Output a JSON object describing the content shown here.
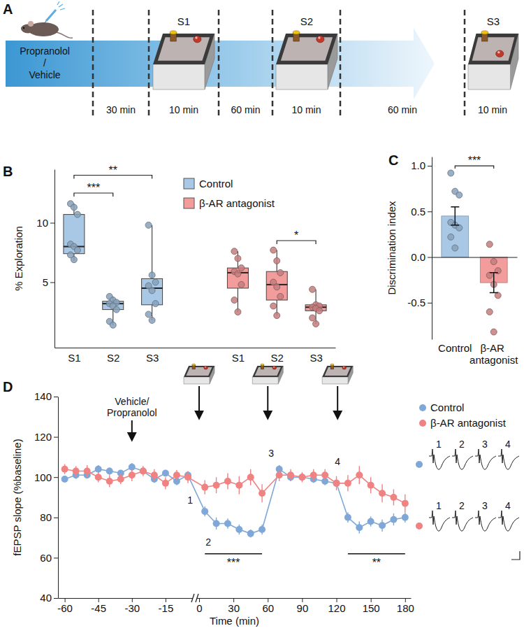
{
  "diagram": {
    "panel": "A",
    "treatment_lines": [
      "Propranolol",
      "/",
      "Vehicle"
    ],
    "sessions": [
      "S1",
      "S2",
      "S3"
    ],
    "intervals": [
      "30 min",
      "10 min",
      "60 min",
      "10 min",
      "60 min",
      "10 min"
    ]
  },
  "chart_data": [
    {
      "panel": "B",
      "type": "box",
      "ylabel": "% Exploration",
      "categories": [
        "S1",
        "S2",
        "S3"
      ],
      "ylim": [
        -0.5,
        14.5
      ],
      "yticks": [
        5,
        10
      ],
      "legend": "top",
      "series": [
        {
          "name": "Control",
          "color": "#a9c8e6",
          "boxes": [
            {
              "min": 6.8,
              "q1": 7.4,
              "median": 8.0,
              "q3": 10.7,
              "max": 11.6,
              "points": [
                11.6,
                11.3,
                10.7,
                8.2,
                8.0,
                7.7,
                7.3,
                6.9
              ]
            },
            {
              "min": 1.4,
              "q1": 2.7,
              "median": 3.2,
              "q3": 3.4,
              "max": 3.8,
              "points": [
                3.8,
                3.5,
                3.3,
                3.2,
                3.0,
                2.7,
                1.7,
                1.4
              ]
            },
            {
              "min": 1.8,
              "q1": 3.1,
              "median": 4.5,
              "q3": 5.3,
              "max": 9.8,
              "points": [
                9.8,
                5.6,
                5.0,
                4.7,
                4.3,
                3.2,
                2.3,
                1.8
              ]
            }
          ]
        },
        {
          "name": "β-AR antagonist",
          "color": "#f29c9c",
          "boxes": [
            {
              "min": 2.5,
              "q1": 4.5,
              "median": 5.8,
              "q3": 6.2,
              "max": 7.6,
              "points": [
                7.6,
                7.0,
                6.2,
                5.9,
                5.7,
                4.8,
                3.5,
                2.5
              ]
            },
            {
              "min": 2.2,
              "q1": 3.5,
              "median": 4.8,
              "q3": 5.9,
              "max": 7.7,
              "points": [
                7.7,
                6.8,
                5.8,
                5.0,
                4.6,
                3.8,
                3.0,
                2.2
              ]
            },
            {
              "min": 1.5,
              "q1": 2.6,
              "median": 2.9,
              "q3": 3.1,
              "max": 4.4,
              "points": [
                4.4,
                3.1,
                3.0,
                2.9,
                2.8,
                2.6,
                2.0,
                1.5
              ]
            }
          ]
        }
      ],
      "annotations": [
        {
          "text": "***",
          "series": "Control",
          "between": [
            "S1",
            "S2"
          ],
          "y": 12.5
        },
        {
          "text": "**",
          "series": "Control",
          "between": [
            "S1",
            "S3"
          ],
          "y": 14.0
        },
        {
          "text": "*",
          "series": "β-AR antagonist",
          "between": [
            "S2",
            "S3"
          ],
          "y": 8.5
        }
      ]
    },
    {
      "panel": "C",
      "type": "bar",
      "ylabel": "Discrimination index",
      "categories": [
        "Control",
        "β-AR antagonist"
      ],
      "values": [
        0.45,
        -0.28
      ],
      "errors": [
        0.1,
        0.11
      ],
      "colors": [
        "#a9c8e6",
        "#f29c9c"
      ],
      "points": [
        [
          0.92,
          0.72,
          0.68,
          0.38,
          0.35,
          0.32,
          0.22,
          0.1
        ],
        [
          0.14,
          -0.05,
          -0.15,
          -0.2,
          -0.3,
          -0.42,
          -0.6,
          -0.82
        ]
      ],
      "ylim": [
        -0.9,
        1.1
      ],
      "yticks": [
        -0.5,
        {
          "value": 0,
          "label": "0.0"
        },
        0.5,
        {
          "value": 1,
          "label": "1.0"
        }
      ],
      "annotations": [
        {
          "text": "***",
          "between": [
            "Control",
            "β-AR antagonist"
          ],
          "y": 1.0
        }
      ]
    },
    {
      "panel": "D",
      "type": "line",
      "marker": "circle",
      "line_style": "solid",
      "xlabel": "Time (min)",
      "ylabel": "fEPSP slope (%baseline)",
      "x": [
        -60,
        -55,
        -50,
        -45,
        -40,
        -35,
        -30,
        -25,
        -20,
        -15,
        -10,
        -5,
        5,
        15,
        25,
        35,
        45,
        55,
        70,
        80,
        90,
        100,
        110,
        120,
        130,
        140,
        150,
        160,
        170,
        180
      ],
      "series": [
        {
          "name": "Control",
          "color": "#7fa8d8",
          "values": [
            99,
            101,
            101,
            104,
            103,
            102,
            105,
            103,
            99,
            102,
            98,
            101,
            83,
            77,
            77,
            74,
            72,
            74,
            104,
            100,
            100,
            99,
            98,
            97,
            80,
            75,
            78,
            76,
            79,
            80
          ],
          "errors": [
            1.5,
            1.8,
            1.5,
            2,
            1.8,
            1.5,
            2,
            1.6,
            1.8,
            1.5,
            2,
            1.6,
            2.5,
            3,
            2.5,
            2.5,
            2,
            2.5,
            2,
            1.8,
            1.5,
            1.8,
            2,
            1.8,
            2.5,
            3,
            2.5,
            3,
            3,
            2.5
          ]
        },
        {
          "name": "β-AR antagonist",
          "color": "#f08282",
          "values": [
            104,
            103,
            103,
            100,
            98,
            99,
            101,
            103,
            101,
            97,
            101,
            100,
            95,
            96,
            98,
            96,
            100,
            92,
            101,
            101,
            100,
            101,
            101,
            97,
            97,
            101,
            96,
            92,
            90,
            87
          ],
          "errors": [
            2.5,
            2.5,
            3,
            2.5,
            3,
            2.5,
            3,
            2.5,
            3,
            3,
            2.5,
            3,
            3.5,
            4,
            4,
            4.5,
            4,
            4.5,
            3,
            3,
            2.5,
            3,
            3,
            3.5,
            4,
            4.5,
            4,
            4.5,
            4,
            4.5
          ]
        }
      ],
      "xlim": [
        -63,
        185
      ],
      "x_break": 0,
      "xticks": [
        -60,
        -45,
        -30,
        -15,
        0,
        30,
        60,
        90,
        120,
        150,
        180
      ],
      "ylim": [
        40,
        140
      ],
      "yticks": [
        40,
        60,
        80,
        100,
        120,
        140
      ],
      "legend": "right",
      "treatment_label": {
        "lines": [
          "Vehicle/",
          "Propranolol"
        ],
        "x": -30
      },
      "session_times": [
        0,
        60,
        121
      ],
      "point_labels": [
        {
          "text": "1",
          "x": -4,
          "y": 87
        },
        {
          "text": "2",
          "x": 8,
          "y": 66
        },
        {
          "text": "3",
          "x": 63,
          "y": 110
        },
        {
          "text": "4",
          "x": 121,
          "y": 106
        }
      ],
      "annotations": [
        {
          "text": "***",
          "x": [
            5,
            55
          ],
          "y": 62
        },
        {
          "text": "**",
          "x": [
            130,
            180
          ],
          "y": 62
        }
      ],
      "trace_labels": [
        "1",
        "2",
        "3",
        "4"
      ]
    }
  ]
}
